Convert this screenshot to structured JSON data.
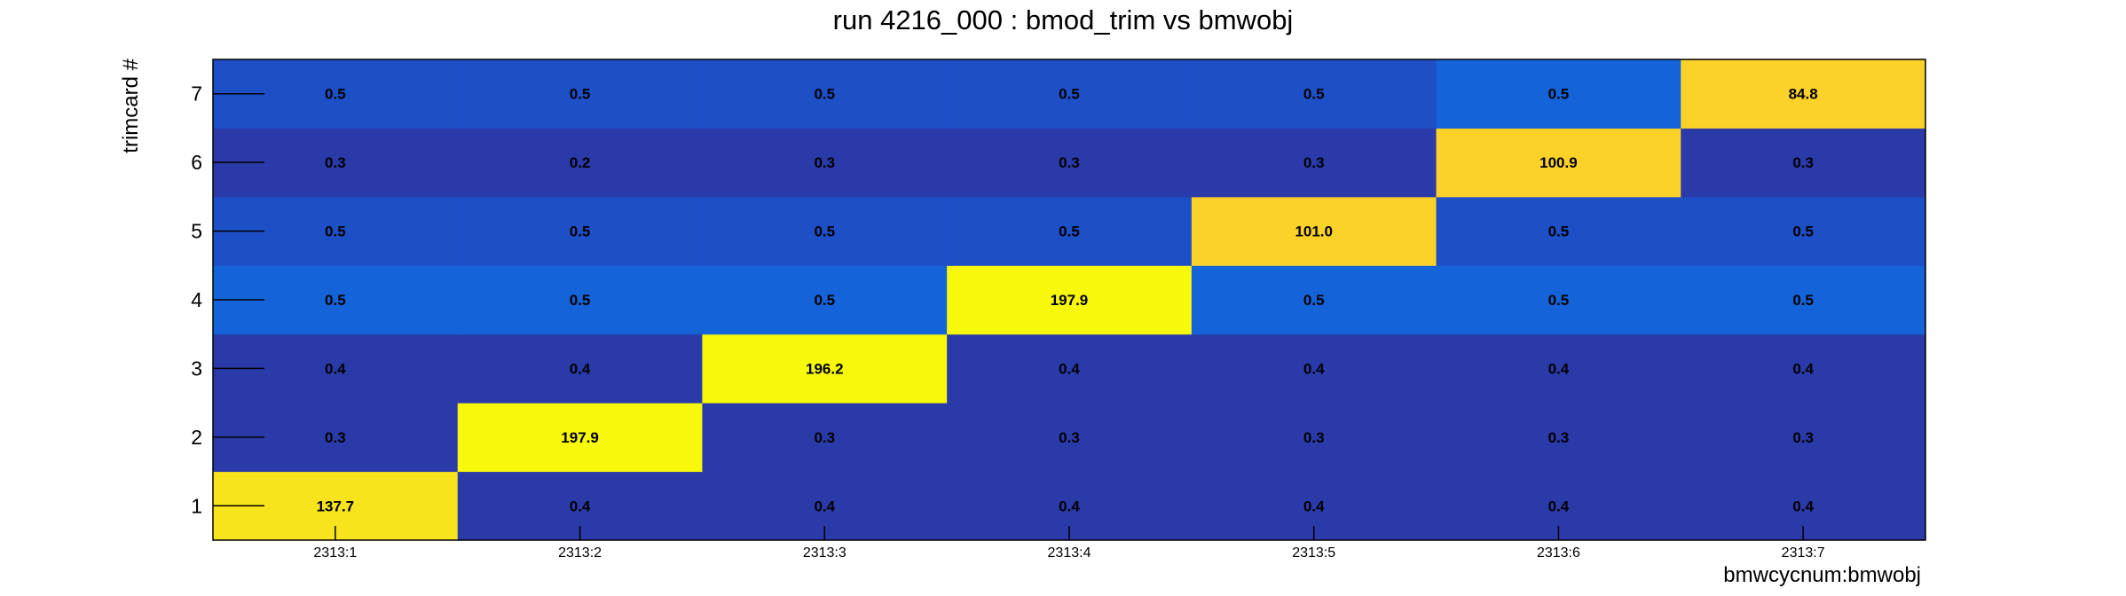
{
  "chart_data": {
    "type": "heatmap",
    "title": "run 4216_000 : bmod_trim vs bmwobj",
    "xlabel": "bmwcycnum:bmwobj",
    "ylabel": "trimcard #",
    "x_categories": [
      "2313:1",
      "2313:2",
      "2313:3",
      "2313:4",
      "2313:5",
      "2313:6",
      "2313:7"
    ],
    "y_categories": [
      "1",
      "2",
      "3",
      "4",
      "5",
      "6",
      "7"
    ],
    "values": [
      [
        137.7,
        0.4,
        0.4,
        0.4,
        0.4,
        0.4,
        0.4
      ],
      [
        0.3,
        197.9,
        0.3,
        0.3,
        0.3,
        0.3,
        0.3
      ],
      [
        0.4,
        0.4,
        196.2,
        0.4,
        0.4,
        0.4,
        0.4
      ],
      [
        0.5,
        0.5,
        0.5,
        197.9,
        0.5,
        0.5,
        0.5
      ],
      [
        0.5,
        0.5,
        0.5,
        0.5,
        101.0,
        0.5,
        0.5
      ],
      [
        0.3,
        0.2,
        0.3,
        0.3,
        0.3,
        100.9,
        0.3
      ],
      [
        0.5,
        0.5,
        0.5,
        0.5,
        0.5,
        0.5,
        84.8
      ]
    ],
    "colors": {
      "low_dark": "#2a3aa8",
      "low_mid": "#1d4fc7",
      "low_bright": "#1463d8",
      "mid_orange": "#fcd12a",
      "high_gold": "#f8e41c",
      "max_yellow": "#f8f80c"
    },
    "grid": false,
    "legend": "none"
  }
}
